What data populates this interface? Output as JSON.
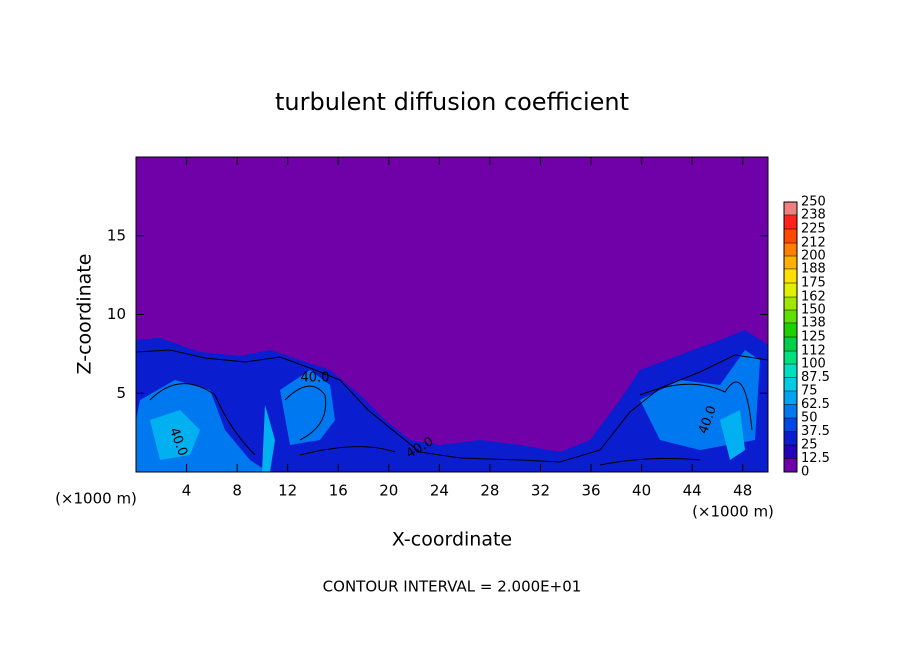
{
  "chart_data": {
    "type": "contour",
    "title": "turbulent diffusion coefficient",
    "x_label": "X-coordinate",
    "y_label": "Z-coordinate",
    "x_unit_label": "(×1000 m)",
    "xlim": [
      0,
      50
    ],
    "ylim": [
      0,
      20
    ],
    "xticks": [
      4,
      8,
      12,
      16,
      20,
      24,
      28,
      32,
      36,
      40,
      44,
      48
    ],
    "yticks": [
      5,
      10,
      15
    ],
    "contour_label": "40.0",
    "footer": "CONTOUR INTERVAL = 2.000E+01",
    "colorbar": {
      "levels": [
        0,
        12.5,
        25,
        37.5,
        50,
        62.5,
        75,
        87.5,
        100,
        112,
        125,
        138,
        150,
        162,
        175,
        188,
        200,
        212,
        225,
        238,
        250
      ],
      "colors": [
        "#7000a8",
        "#2400b8",
        "#0a1ed0",
        "#0048e6",
        "#0078f0",
        "#00a4f0",
        "#00cce8",
        "#00e0c0",
        "#00e080",
        "#00d048",
        "#20d000",
        "#60e000",
        "#a0e800",
        "#e0f000",
        "#ffe000",
        "#ffb000",
        "#ff8000",
        "#ff4800",
        "#ff2020",
        "#f08080"
      ]
    }
  }
}
